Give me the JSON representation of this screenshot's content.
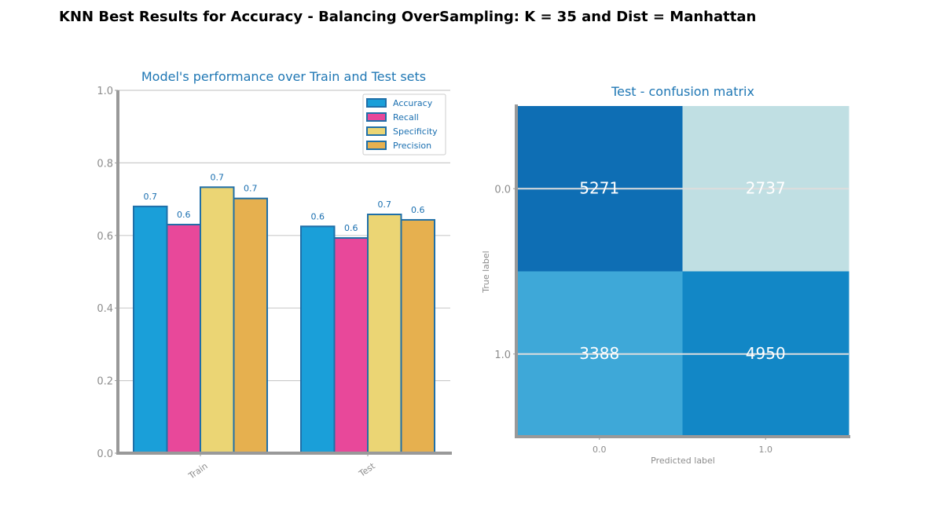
{
  "figure": {
    "suptitle": "KNN Best Results for Accuracy - Balancing OverSampling: K = 35 and Dist = Manhattan"
  },
  "chart_data": [
    {
      "type": "bar",
      "title": "Model's performance over Train and Test sets",
      "xlabel": "",
      "ylabel": "",
      "categories": [
        "Train",
        "Test"
      ],
      "series": [
        {
          "name": "Accuracy",
          "values": [
            0.68,
            0.625
          ],
          "labels": [
            "0.7",
            "0.6"
          ],
          "color": "#1a9fd9"
        },
        {
          "name": "Recall",
          "values": [
            0.63,
            0.593
          ],
          "labels": [
            "0.6",
            "0.6"
          ],
          "color": "#e8489a"
        },
        {
          "name": "Specificity",
          "values": [
            0.733,
            0.658
          ],
          "labels": [
            "0.7",
            "0.7"
          ],
          "color": "#ebd574"
        },
        {
          "name": "Precision",
          "values": [
            0.702,
            0.643
          ],
          "labels": [
            "0.7",
            "0.6"
          ],
          "color": "#e6b04f"
        }
      ],
      "ylim": [
        0,
        1.0
      ],
      "yticks": [
        "0.0",
        "0.2",
        "0.4",
        "0.6",
        "0.8",
        "1.0"
      ],
      "grid": true,
      "legend": "top-right",
      "bar_edge_color": "#1f6fa8"
    },
    {
      "type": "heatmap",
      "title": "Test - confusion matrix",
      "xlabel": "Predicted label",
      "ylabel": "True label",
      "x_ticks": [
        "0.0",
        "1.0"
      ],
      "y_ticks": [
        "0.0",
        "1.0"
      ],
      "values": [
        [
          5271,
          2737
        ],
        [
          3388,
          4950
        ]
      ],
      "cell_colors": [
        [
          "#0e6eb4",
          "#c0dfe3"
        ],
        [
          "#3ea8d8",
          "#1287c6"
        ]
      ],
      "grid": true
    }
  ]
}
